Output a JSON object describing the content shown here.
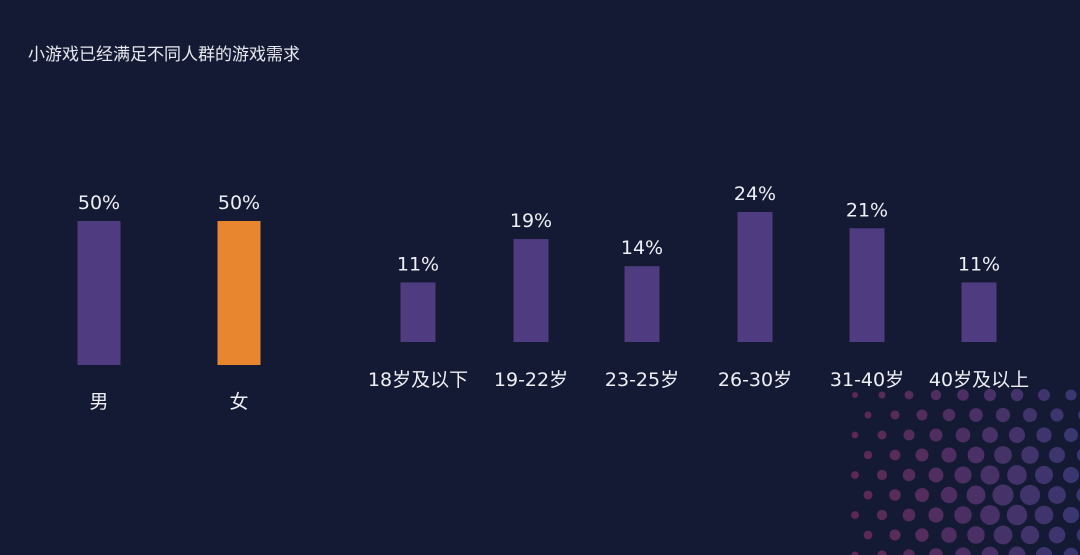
{
  "title": "小游戏已经满足不同人群的游戏需求",
  "colors": {
    "background": "#141a33",
    "bar": "#4f3b80",
    "highlight": "#e8852f"
  },
  "chart_data": [
    {
      "type": "bar",
      "categories": [
        "男",
        "女"
      ],
      "values": [
        50,
        50
      ],
      "data_labels": [
        "50%",
        "50%"
      ],
      "bar_colors": [
        "#4f3b80",
        "#e8852f"
      ],
      "ylim": [
        0,
        50
      ],
      "grid": false
    },
    {
      "type": "bar",
      "categories": [
        "18岁及以下",
        "19-22岁",
        "23-25岁",
        "26-30岁",
        "31-40岁",
        "40岁及以上"
      ],
      "values": [
        11,
        19,
        14,
        24,
        21,
        11
      ],
      "data_labels": [
        "11%",
        "19%",
        "14%",
        "24%",
        "21%",
        "11%"
      ],
      "ylim": [
        0,
        24
      ],
      "grid": false
    }
  ]
}
